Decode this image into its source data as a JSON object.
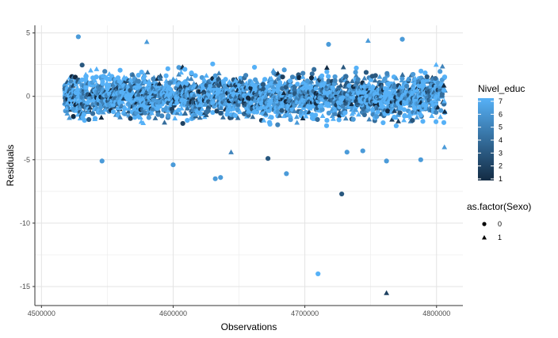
{
  "chart_data": {
    "type": "scatter",
    "xlabel": "Observations",
    "ylabel": "Residuals",
    "xlim": [
      4495000,
      4820000
    ],
    "ylim": [
      -16.5,
      5.6
    ],
    "x_ticks": [
      4500000,
      4600000,
      4700000,
      4800000
    ],
    "x_tick_labels": [
      "4500000",
      "4600000",
      "4700000",
      "4800000"
    ],
    "y_ticks": [
      5,
      0,
      -5,
      -10,
      -15
    ],
    "y_tick_labels": [
      "5",
      "0",
      "-5",
      "-10",
      "-15"
    ],
    "grid": true,
    "legend_position": "right",
    "color_legend": {
      "title": "Nivel_educ",
      "min": 1,
      "max": 7,
      "labels": [
        "7",
        "6",
        "5",
        "4",
        "3",
        "2",
        "1"
      ],
      "low_color": "#132B43",
      "high_color": "#56B1F7"
    },
    "shape_legend": {
      "title": "as.factor(Sexo)",
      "labels": [
        "0",
        "1"
      ],
      "shapes": [
        "circle",
        "triangle"
      ]
    },
    "series": [
      {
        "values": [
          {
            "x": 4528000,
            "y": 4.7,
            "educ": 6,
            "sexo": 0
          },
          {
            "x": 4710000,
            "y": -14.0,
            "educ": 7,
            "sexo": 0
          },
          {
            "x": 4762000,
            "y": -15.5,
            "educ": 2,
            "sexo": 1
          },
          {
            "x": 4728000,
            "y": -7.7,
            "educ": 3,
            "sexo": 0
          },
          {
            "x": 4632000,
            "y": -6.5,
            "educ": 6,
            "sexo": 0
          },
          {
            "x": 4636000,
            "y": -6.4,
            "educ": 6,
            "sexo": 0
          },
          {
            "x": 4686000,
            "y": -6.1,
            "educ": 6,
            "sexo": 0
          },
          {
            "x": 4600000,
            "y": -5.4,
            "educ": 6,
            "sexo": 0
          },
          {
            "x": 4546000,
            "y": -5.1,
            "educ": 6,
            "sexo": 0
          },
          {
            "x": 4672000,
            "y": -4.9,
            "educ": 3,
            "sexo": 0
          },
          {
            "x": 4762000,
            "y": -5.1,
            "educ": 6,
            "sexo": 0
          },
          {
            "x": 4788000,
            "y": -5.0,
            "educ": 6,
            "sexo": 0
          },
          {
            "x": 4806000,
            "y": -4.0,
            "educ": 6,
            "sexo": 1
          },
          {
            "x": 4774000,
            "y": 4.5,
            "educ": 6,
            "sexo": 0
          },
          {
            "x": 4718000,
            "y": 4.1,
            "educ": 6,
            "sexo": 0
          },
          {
            "x": 4748000,
            "y": 4.4,
            "educ": 6,
            "sexo": 1
          },
          {
            "x": 4580000,
            "y": 4.3,
            "educ": 6,
            "sexo": 1
          },
          {
            "x": 4744000,
            "y": -4.3,
            "educ": 6,
            "sexo": 0
          },
          {
            "x": 4732000,
            "y": -4.4,
            "educ": 6,
            "sexo": 0
          },
          {
            "x": 4644000,
            "y": -4.4,
            "educ": 5,
            "sexo": 1
          }
        ]
      }
    ]
  }
}
